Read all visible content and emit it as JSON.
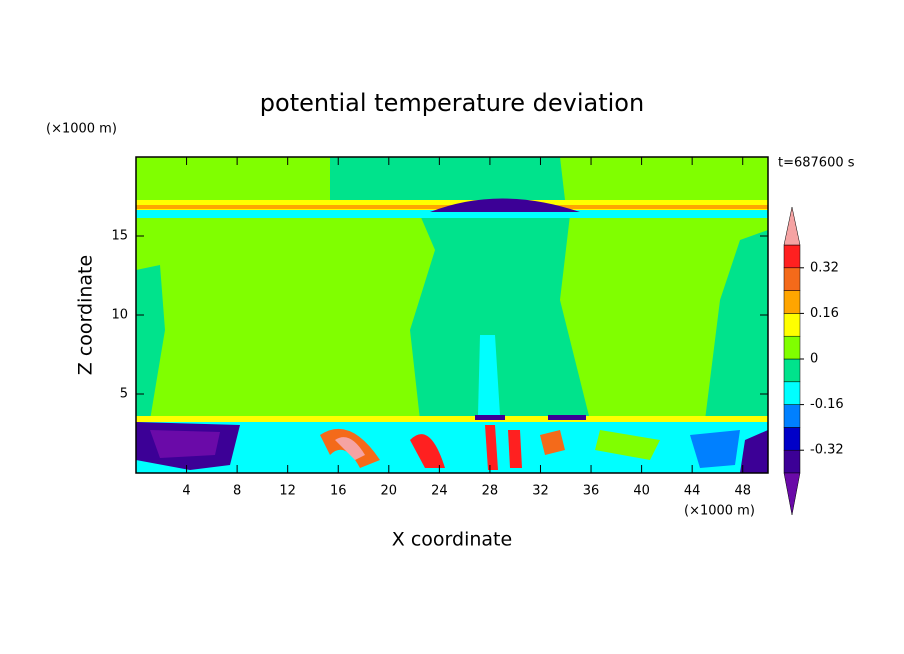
{
  "chart_data": {
    "type": "contour",
    "title": "potential temperature deviation",
    "x_label": "X coordinate",
    "y_label": "Z coordinate",
    "x_unit": "(×1000 m)",
    "y_unit": "(×1000 m)",
    "annotation": "t=687600 s",
    "xlim": [
      0,
      50
    ],
    "xticks": [
      4,
      8,
      12,
      16,
      20,
      24,
      28,
      32,
      36,
      40,
      44,
      48
    ],
    "ylim": [
      0,
      20
    ],
    "yticks": [
      5,
      10,
      15
    ],
    "colorbar": {
      "levels": [
        -0.4,
        -0.32,
        -0.24,
        -0.16,
        -0.08,
        0,
        0.08,
        0.16,
        0.24,
        0.32,
        0.4
      ],
      "colors": [
        "#6a0aa8",
        "#3c0096",
        "#0000c8",
        "#0080ff",
        "#00ffff",
        "#00e38c",
        "#80ff00",
        "#ffff00",
        "#ffa500",
        "#f46a1a",
        "#ff2020",
        "#f5a3a3"
      ],
      "ticks": [
        -0.32,
        -0.16,
        0,
        0.16,
        0.32
      ]
    }
  }
}
